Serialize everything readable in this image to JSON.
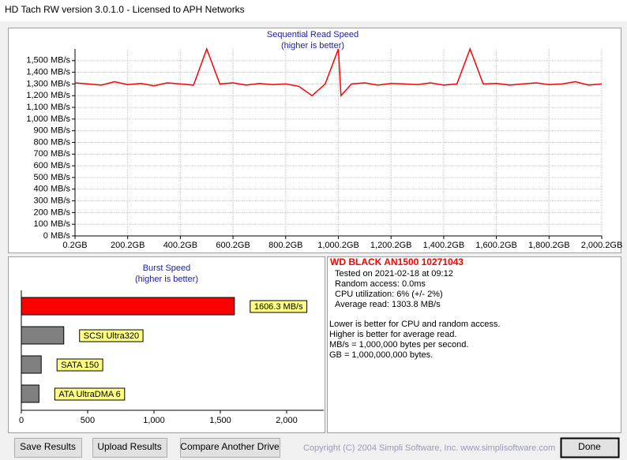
{
  "window": {
    "title": "HD Tach RW version 3.0.1.0 - Licensed to APH Networks"
  },
  "chart_data": [
    {
      "type": "line",
      "title": "Sequential Read Speed",
      "subtitle": "(higher is better)",
      "color": "#ff0000",
      "grid": true,
      "x": [
        0.2,
        50.2,
        100.2,
        150.2,
        200.2,
        250.2,
        300.2,
        350.2,
        400.2,
        450.2,
        500.2,
        550.2,
        600.2,
        650.2,
        700.2,
        750.2,
        800.2,
        850.2,
        900.2,
        950.2,
        1000.2,
        1010.2,
        1050.2,
        1100.2,
        1150.2,
        1200.2,
        1250.2,
        1300.2,
        1350.2,
        1400.2,
        1450.2,
        1500.2,
        1550.2,
        1600.2,
        1650.2,
        1700.2,
        1750.2,
        1800.2,
        1850.2,
        1900.2,
        1950.2,
        2000.2
      ],
      "values": [
        1310,
        1300,
        1290,
        1320,
        1295,
        1305,
        1285,
        1310,
        1300,
        1290,
        1600,
        1300,
        1310,
        1290,
        1305,
        1295,
        1300,
        1280,
        1200,
        1300,
        1600,
        1200,
        1300,
        1310,
        1290,
        1305,
        1300,
        1295,
        1310,
        1290,
        1300,
        1600,
        1300,
        1305,
        1290,
        1300,
        1310,
        1295,
        1300,
        1320,
        1290,
        1300
      ],
      "xlim": [
        0.2,
        2000.2
      ],
      "xticks": [
        {
          "value": 0.2,
          "label": "0.2GB"
        },
        {
          "value": 200.2,
          "label": "200.2GB"
        },
        {
          "value": 400.2,
          "label": "400.2GB"
        },
        {
          "value": 600.2,
          "label": "600.2GB"
        },
        {
          "value": 800.2,
          "label": "800.2GB"
        },
        {
          "value": 1000.2,
          "label": "1,000.2GB"
        },
        {
          "value": 1200.2,
          "label": "1,200.2GB"
        },
        {
          "value": 1400.2,
          "label": "1,400.2GB"
        },
        {
          "value": 1600.2,
          "label": "1,600.2GB"
        },
        {
          "value": 1800.2,
          "label": "1,800.2GB"
        },
        {
          "value": 2000.2,
          "label": "2,000.2GB"
        }
      ],
      "ylim": [
        0,
        1600
      ],
      "yticks": [
        {
          "value": 0,
          "label": "0 MB/s"
        },
        {
          "value": 100,
          "label": "100 MB/s"
        },
        {
          "value": 200,
          "label": "200 MB/s"
        },
        {
          "value": 300,
          "label": "300 MB/s"
        },
        {
          "value": 400,
          "label": "400 MB/s"
        },
        {
          "value": 500,
          "label": "500 MB/s"
        },
        {
          "value": 600,
          "label": "600 MB/s"
        },
        {
          "value": 700,
          "label": "700 MB/s"
        },
        {
          "value": 800,
          "label": "800 MB/s"
        },
        {
          "value": 900,
          "label": "900 MB/s"
        },
        {
          "value": 1000,
          "label": "1,000 MB/s"
        },
        {
          "value": 1100,
          "label": "1,100 MB/s"
        },
        {
          "value": 1200,
          "label": "1,200 MB/s"
        },
        {
          "value": 1300,
          "label": "1,300 MB/s"
        },
        {
          "value": 1400,
          "label": "1,400 MB/s"
        },
        {
          "value": 1500,
          "label": "1,500 MB/s"
        }
      ]
    },
    {
      "type": "hbar",
      "title": "Burst Speed",
      "subtitle": "(higher is better)",
      "categories": [
        null,
        "SCSI Ultra320",
        "SATA 150",
        "ATA UltraDMA 6"
      ],
      "values": [
        1606.3,
        320,
        150,
        133
      ],
      "value_labels": [
        "1606.3 MB/s",
        null,
        null,
        null
      ],
      "colors": [
        "#ff0000",
        "#808080",
        "#808080",
        "#808080"
      ],
      "xlim": [
        0,
        2280
      ],
      "xticks": [
        0,
        500,
        {
          "value": 1000,
          "label": "1,000"
        },
        {
          "value": 1500,
          "label": "1,500"
        },
        {
          "value": 2000,
          "label": "2,000"
        }
      ]
    }
  ],
  "info": {
    "drive": "WD BLACK AN1500 10271043",
    "details": [
      "Tested on 2021-02-18 at 09:12",
      "Random access: 0.0ms",
      "CPU utilization: 6% (+/- 2%)",
      "Average read: 1303.8 MB/s"
    ],
    "notes": [
      "Lower is better for CPU and random access.",
      "Higher is better for average read.",
      "MB/s = 1,000,000 bytes per second.",
      "GB = 1,000,000,000 bytes."
    ]
  },
  "buttons": [
    "Save Results",
    "Upload Results",
    "Compare Another Drive",
    "Done"
  ],
  "copyright": "Copyright (C) 2004 Simpli Software, Inc. www.simplisoftware.com"
}
